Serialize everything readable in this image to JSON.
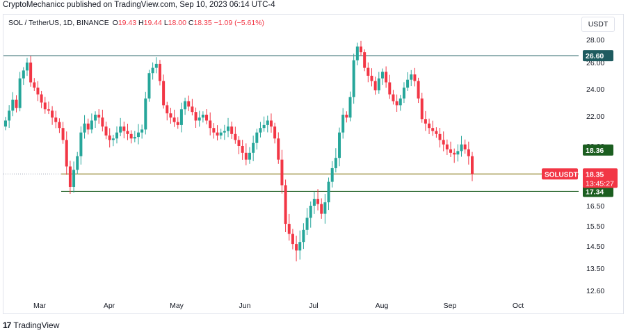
{
  "header": {
    "published": "CryptoMechanicc published on TradingView.com, Sep 10, 2023 06:14 UTC-4"
  },
  "legend": {
    "symbol": "SOL / TetherUS, 1D, BINANCE",
    "o_label": "O",
    "o": "19.43",
    "h_label": "H",
    "h": "19.44",
    "l_label": "L",
    "l": "18.00",
    "c_label": "C",
    "c": "18.35",
    "change": "−1.09 (−5.61%)"
  },
  "currency": "USDT",
  "footer": {
    "brand": "TradingView",
    "logo_icon": "tradingview-logo-icon"
  },
  "colors": {
    "up": "#26a69a",
    "down": "#f23645",
    "level_line": "#1e5b5f",
    "support_line": "#1b5e20",
    "price_line": "#7a6a00"
  },
  "chart_data": {
    "type": "candlestick",
    "ylim": [
      12.2,
      29.8
    ],
    "y_ticks": [
      "28.00",
      "26.00",
      "24.00",
      "22.00",
      "20.00",
      "16.50",
      "15.50",
      "14.50",
      "13.50",
      "12.60"
    ],
    "x_ticks": [
      "Mar",
      "Apr",
      "May",
      "Jun",
      "Jul",
      "Aug",
      "Sep",
      "Oct"
    ],
    "horizontal_lines": [
      {
        "value": 26.6,
        "label": "26.60",
        "style": "solid"
      },
      {
        "value": 18.36,
        "label": "18.36",
        "style": "dotted"
      },
      {
        "value": 17.34,
        "label": "17.34",
        "style": "solid"
      }
    ],
    "last_price": {
      "symbol": "SOLUSDT",
      "value": "18.35",
      "countdown": "13:45:27"
    },
    "close_series": [
      21.7,
      22.4,
      23.2,
      22.6,
      24.8,
      25.4,
      26.0,
      24.5,
      24.1,
      23.6,
      23.0,
      22.5,
      22.4,
      21.9,
      21.6,
      21.2,
      20.4,
      18.8,
      17.6,
      18.6,
      19.4,
      20.9,
      21.5,
      21.1,
      21.7,
      22.1,
      21.9,
      21.3,
      20.7,
      20.4,
      20.5,
      20.9,
      21.3,
      21.0,
      20.8,
      20.5,
      20.6,
      20.9,
      21.1,
      23.3,
      25.2,
      25.6,
      25.9,
      24.6,
      22.8,
      22.2,
      21.9,
      21.6,
      21.4,
      22.5,
      23.1,
      22.7,
      22.3,
      21.7,
      21.9,
      22.1,
      21.7,
      21.2,
      20.9,
      20.7,
      20.9,
      21.0,
      21.3,
      20.8,
      20.4,
      20.0,
      19.6,
      19.2,
      19.6,
      20.2,
      20.9,
      21.2,
      21.4,
      21.7,
      21.3,
      20.5,
      19.2,
      17.7,
      15.6,
      15.1,
      14.6,
      14.3,
      14.7,
      15.3,
      15.9,
      16.5,
      16.9,
      16.6,
      16.1,
      16.7,
      17.9,
      18.7,
      19.3,
      20.9,
      22.1,
      21.9,
      23.4,
      26.2,
      27.4,
      26.9,
      25.6,
      25.0,
      24.6,
      23.9,
      24.8,
      25.3,
      24.5,
      23.6,
      23.1,
      22.8,
      23.3,
      24.1,
      24.7,
      25.1,
      24.6,
      23.3,
      21.8,
      21.5,
      21.2,
      21.0,
      20.8,
      20.4,
      20.1,
      19.8,
      19.6,
      19.5,
      19.7,
      20.1,
      19.8,
      19.4,
      18.35
    ]
  }
}
